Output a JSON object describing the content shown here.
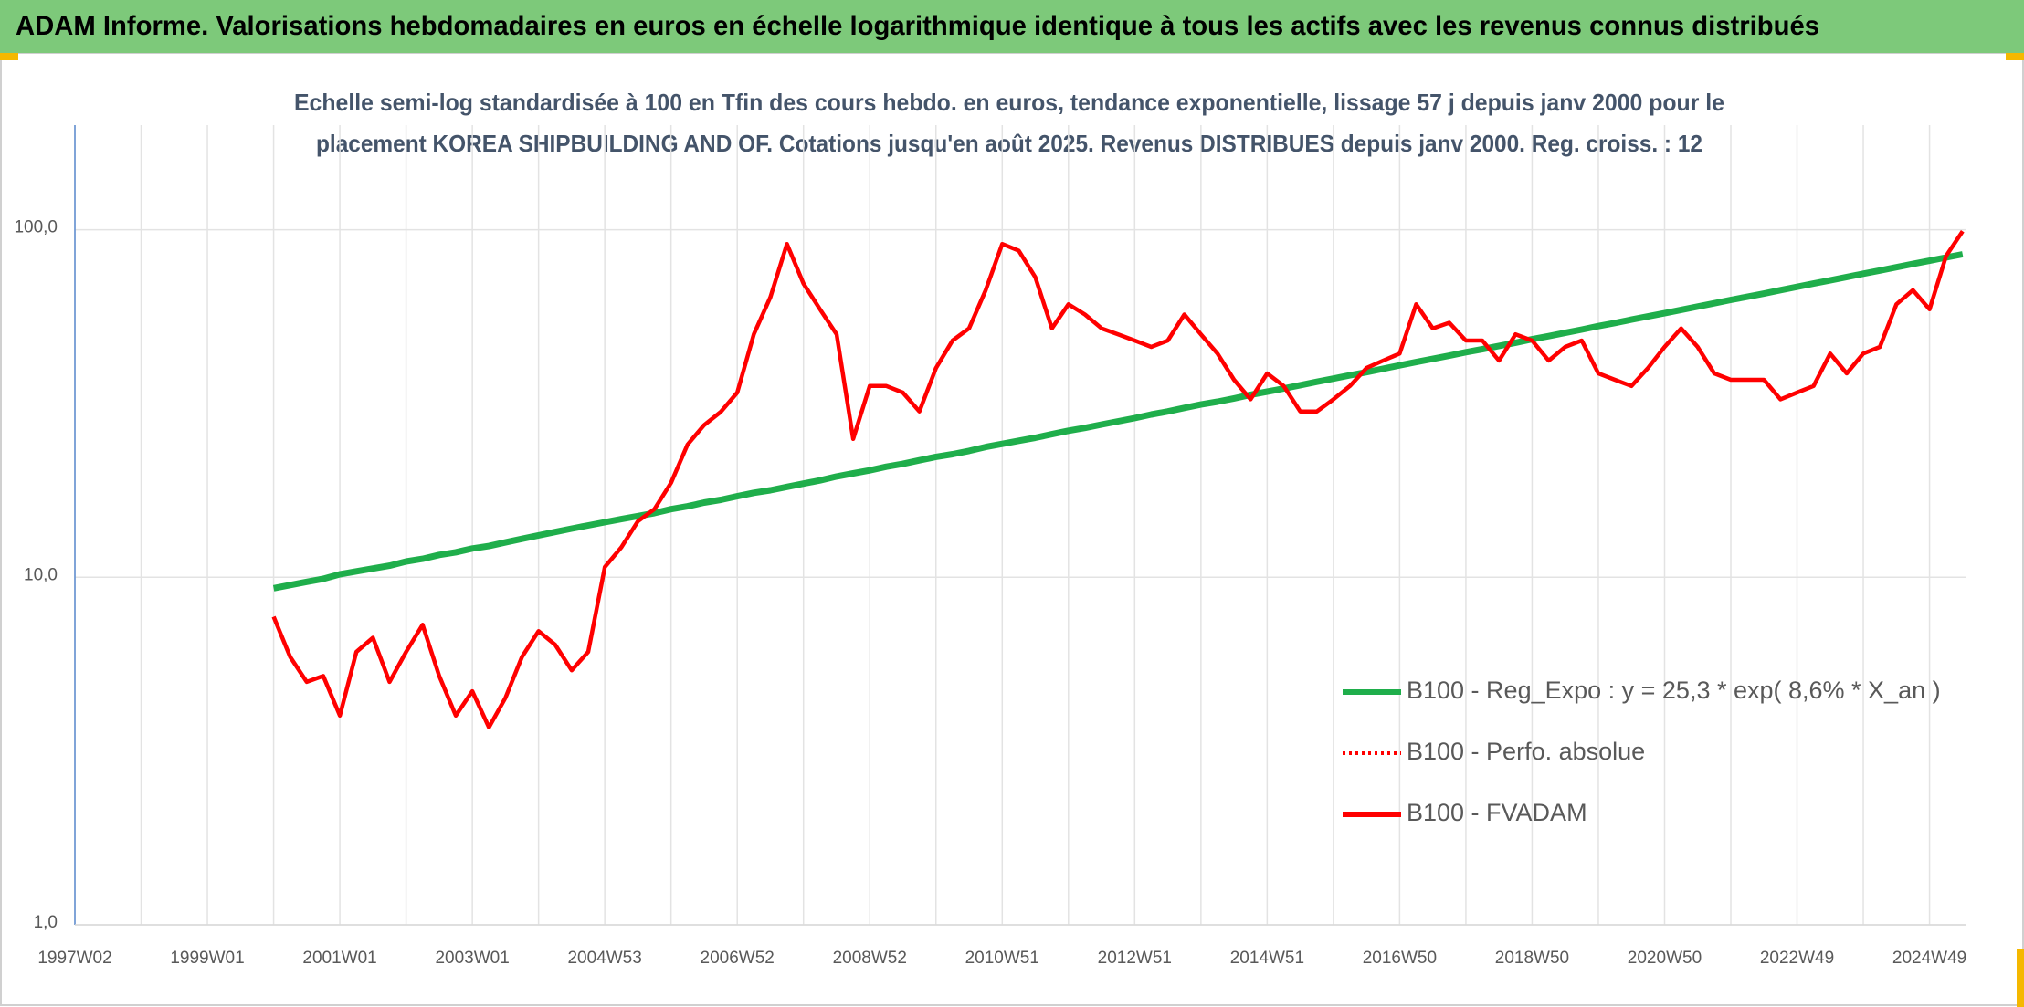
{
  "chart_data": {
    "type": "line",
    "title": "ADAM Informe. Valorisations hebdomadaires en euros en échelle logarithmique identique à tous les actifs avec les revenus connus distribués",
    "subtitle": [
      "Echelle semi-log standardisée à 100 en Tfin des cours hebdo. en euros, tendance exponentielle, lissage 57 j depuis janv 2000 pour le",
      "placement KOREA SHIPBUILDING AND OF. Cotations jusqu'en août 2025. Revenus DISTRIBUES depuis janv 2000. Reg. croiss. : 12"
    ],
    "log_scale": true,
    "grid": true,
    "legend": "bottom-right",
    "ylim": [
      1,
      200
    ],
    "yticks": [
      {
        "value": 1,
        "label": "1,0"
      },
      {
        "value": 10,
        "label": "10,0"
      },
      {
        "value": 100,
        "label": "100,0"
      }
    ],
    "categories": [
      "1997W02",
      null,
      null,
      null,
      null,
      null,
      null,
      null,
      "1999W01",
      null,
      null,
      null,
      null,
      null,
      null,
      null,
      "2001W01",
      null,
      null,
      null,
      null,
      null,
      null,
      null,
      "2003W01",
      null,
      null,
      null,
      null,
      null,
      null,
      null,
      "2004W53",
      null,
      null,
      null,
      null,
      null,
      null,
      null,
      "2006W52",
      null,
      null,
      null,
      null,
      null,
      null,
      null,
      "2008W52",
      null,
      null,
      null,
      null,
      null,
      null,
      null,
      "2010W51",
      null,
      null,
      null,
      null,
      null,
      null,
      null,
      "2012W51",
      null,
      null,
      null,
      null,
      null,
      null,
      null,
      "2014W51",
      null,
      null,
      null,
      null,
      null,
      null,
      null,
      "2016W50",
      null,
      null,
      null,
      null,
      null,
      null,
      null,
      "2018W50",
      null,
      null,
      null,
      null,
      null,
      null,
      null,
      "2020W50",
      null,
      null,
      null,
      null,
      null,
      null,
      null,
      "2022W49",
      null,
      null,
      null,
      null,
      null,
      null,
      null,
      "2024W49",
      null,
      null
    ],
    "series": [
      {
        "name": "B100 - Reg_Expo : y = 25,3 * exp( 8,6% *  X_an )",
        "color": "#1fae4b",
        "style": "solid",
        "values": [
          null,
          null,
          null,
          null,
          null,
          null,
          null,
          null,
          null,
          null,
          null,
          null,
          9.3,
          9.5,
          9.7,
          9.9,
          10.2,
          10.4,
          10.6,
          10.8,
          11.1,
          11.3,
          11.6,
          11.8,
          12.1,
          12.3,
          12.6,
          12.9,
          13.2,
          13.5,
          13.8,
          14.1,
          14.4,
          14.7,
          15.0,
          15.3,
          15.7,
          16.0,
          16.4,
          16.7,
          17.1,
          17.5,
          17.8,
          18.2,
          18.6,
          19.0,
          19.5,
          19.9,
          20.3,
          20.8,
          21.2,
          21.7,
          22.2,
          22.6,
          23.1,
          23.7,
          24.2,
          24.7,
          25.2,
          25.8,
          26.4,
          26.9,
          27.5,
          28.1,
          28.7,
          29.4,
          30.0,
          30.7,
          31.4,
          32.0,
          32.7,
          33.5,
          34.2,
          34.9,
          35.7,
          36.5,
          37.3,
          38.1,
          38.9,
          39.8,
          40.7,
          41.6,
          42.5,
          43.4,
          44.4,
          45.3,
          46.3,
          47.3,
          48.4,
          49.4,
          50.5,
          51.6,
          52.8,
          53.9,
          55.1,
          56.3,
          57.5,
          58.8,
          60.1,
          61.4,
          62.8,
          64.1,
          65.5,
          67.0,
          68.5,
          70.0,
          71.5,
          73.1,
          74.7,
          76.3,
          78.0,
          79.7,
          81.4,
          83.2,
          85.0
        ]
      },
      {
        "name": "B100 - Perfo. absolue",
        "color": "#ff0000",
        "style": "dotted"
      },
      {
        "name": "B100 - FVADAM",
        "color": "#ff0000",
        "style": "solid",
        "values": [
          null,
          null,
          null,
          null,
          null,
          null,
          null,
          null,
          null,
          null,
          null,
          null,
          7.7,
          5.9,
          5.0,
          5.2,
          4.0,
          6.1,
          6.7,
          5.0,
          6.1,
          7.3,
          5.2,
          4.0,
          4.7,
          3.7,
          4.5,
          5.9,
          7.0,
          6.4,
          5.4,
          6.1,
          10.7,
          12.2,
          14.5,
          15.7,
          18.7,
          24.1,
          27.4,
          29.9,
          34,
          50,
          64,
          91,
          70,
          59,
          50,
          25,
          35.5,
          35.5,
          34,
          30,
          40,
          48,
          52,
          67,
          91,
          87,
          73,
          52,
          61,
          57,
          52,
          50,
          48,
          46,
          48,
          57,
          50,
          44,
          37,
          32.5,
          38.6,
          35.5,
          30,
          30,
          32.5,
          35.5,
          40,
          42,
          44,
          61,
          52,
          54,
          48,
          48,
          42,
          50,
          48,
          42,
          46,
          48,
          38.6,
          37,
          35.5,
          40,
          46,
          52,
          46,
          38.6,
          37,
          37,
          37,
          32.5,
          34,
          35.5,
          44,
          38.6,
          44,
          46,
          61,
          67,
          59,
          84,
          99
        ]
      }
    ]
  }
}
